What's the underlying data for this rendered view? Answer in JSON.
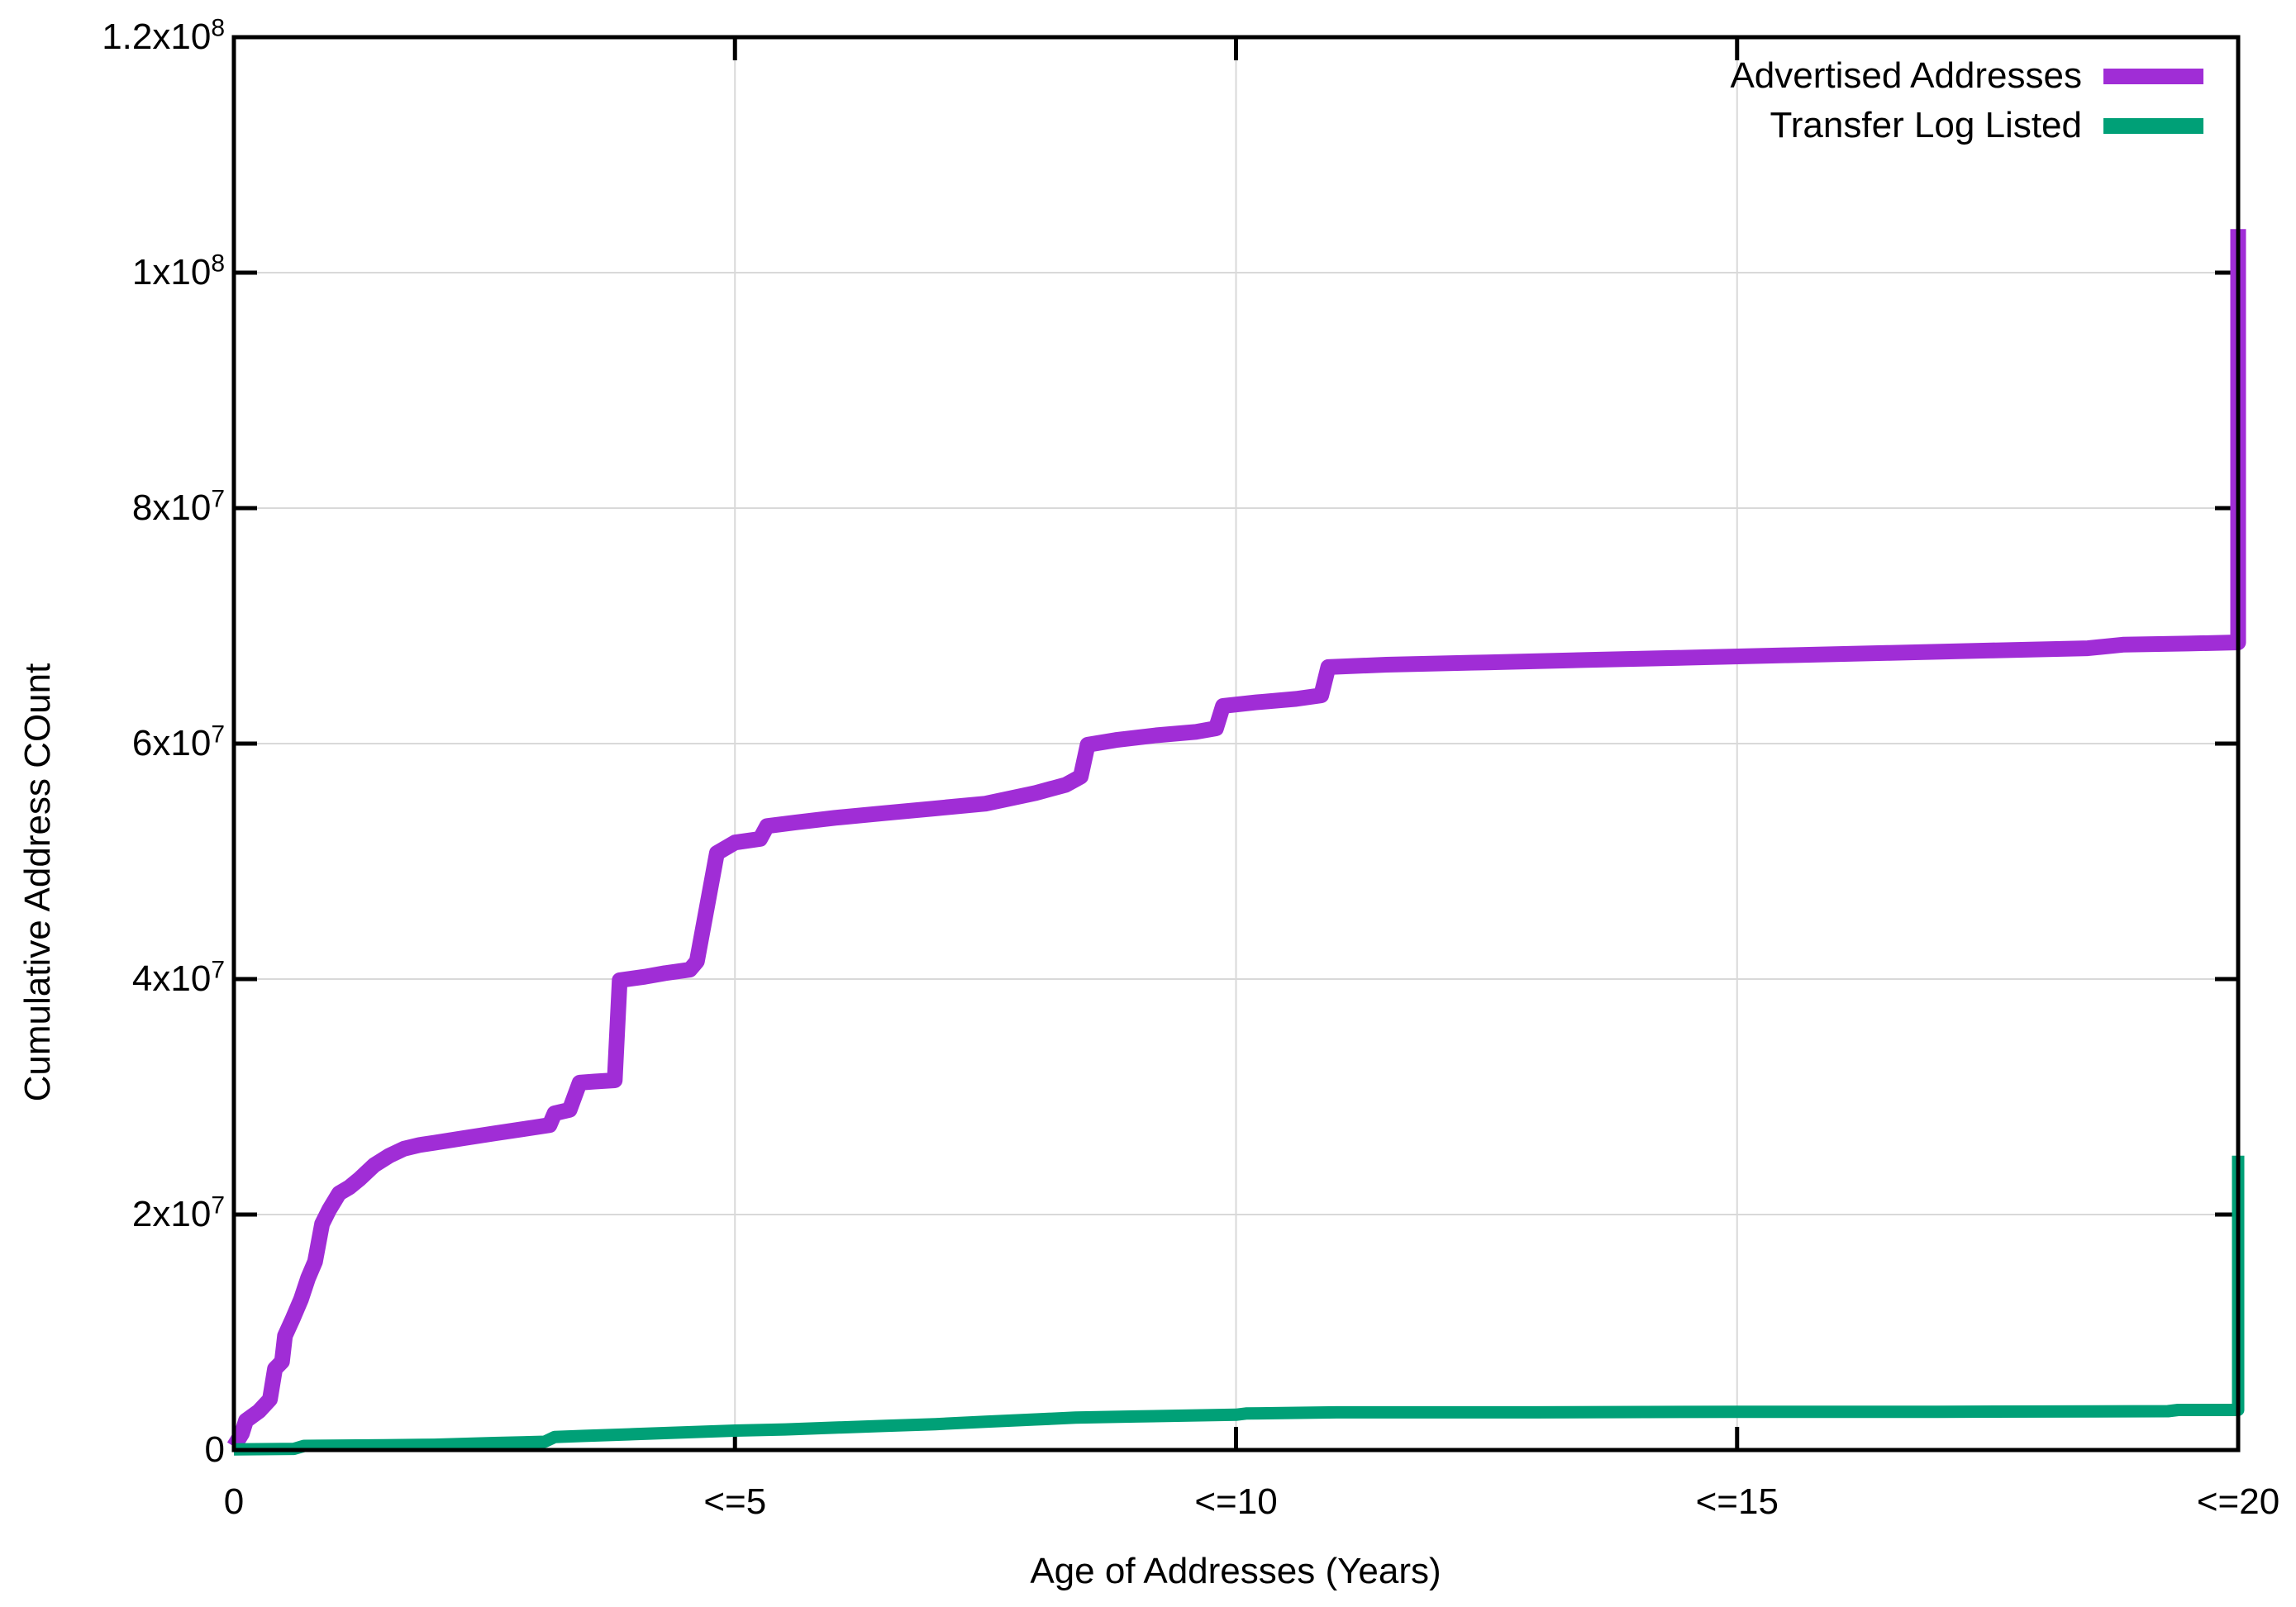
{
  "figure": {
    "background_color": "#ffffff",
    "border_color": "#000000",
    "grid_color": "#d9d9d9"
  },
  "legend": {
    "position": "top-right-inside",
    "entries": [
      {
        "label": "Advertised Addresses",
        "color": "#A02DD6"
      },
      {
        "label": "Transfer Log Listed",
        "color": "#00A077"
      }
    ]
  },
  "axis": {
    "x_label": "Age of Addresses (Years)",
    "y_label": "Cumulative Address COunt",
    "x_ticks": [
      {
        "year": 0,
        "label": "0"
      },
      {
        "year": 5,
        "label": "<=5"
      },
      {
        "year": 10,
        "label": "<=10"
      },
      {
        "year": 15,
        "label": "<=15"
      },
      {
        "year": 20,
        "label": "<=20"
      }
    ],
    "y_ticks": [
      {
        "value": 0,
        "base": "0",
        "exp": ""
      },
      {
        "value": 20000000,
        "base": "2x10",
        "exp": "7"
      },
      {
        "value": 40000000,
        "base": "4x10",
        "exp": "7"
      },
      {
        "value": 60000000,
        "base": "6x10",
        "exp": "7"
      },
      {
        "value": 80000000,
        "base": "8x10",
        "exp": "7"
      },
      {
        "value": 100000000,
        "base": "1x10",
        "exp": "8"
      },
      {
        "value": 120000000,
        "base": "1.2x10",
        "exp": "8"
      }
    ]
  },
  "chart_data": {
    "type": "line",
    "title": "",
    "xlabel": "Age of Addresses (Years)",
    "ylabel": "Cumulative Address COunt",
    "xlim": [
      0,
      20
    ],
    "ylim": [
      0,
      120000000
    ],
    "grid": true,
    "legend_position": "top-right",
    "series": [
      {
        "name": "Advertised Addresses",
        "color": "#A02DD6",
        "line_width": 19,
        "points": [
          [
            0,
            300000
          ],
          [
            0.08,
            1400000
          ],
          [
            0.12,
            2500000
          ],
          [
            0.25,
            3300000
          ],
          [
            0.36,
            4300000
          ],
          [
            0.41,
            6900000
          ],
          [
            0.48,
            7500000
          ],
          [
            0.51,
            9700000
          ],
          [
            0.59,
            11200000
          ],
          [
            0.67,
            12800000
          ],
          [
            0.74,
            14600000
          ],
          [
            0.81,
            16000000
          ],
          [
            0.88,
            19200000
          ],
          [
            0.95,
            20400000
          ],
          [
            1.05,
            21800000
          ],
          [
            1.15,
            22300000
          ],
          [
            1.25,
            23000000
          ],
          [
            1.4,
            24200000
          ],
          [
            1.55,
            25000000
          ],
          [
            1.7,
            25600000
          ],
          [
            1.85,
            25900000
          ],
          [
            2.0,
            26100000
          ],
          [
            2.3,
            26500000
          ],
          [
            2.6,
            26900000
          ],
          [
            3.0,
            27400000
          ],
          [
            3.15,
            27600000
          ],
          [
            3.2,
            28600000
          ],
          [
            3.35,
            28900000
          ],
          [
            3.45,
            31200000
          ],
          [
            3.6,
            31300000
          ],
          [
            3.8,
            31400000
          ],
          [
            3.85,
            39900000
          ],
          [
            4.1,
            40200000
          ],
          [
            4.3,
            40500000
          ],
          [
            4.55,
            40800000
          ],
          [
            4.62,
            41500000
          ],
          [
            4.72,
            46100000
          ],
          [
            4.82,
            50700000
          ],
          [
            5.0,
            51600000
          ],
          [
            5.25,
            51900000
          ],
          [
            5.32,
            53000000
          ],
          [
            5.6,
            53300000
          ],
          [
            6.0,
            53700000
          ],
          [
            6.5,
            54100000
          ],
          [
            7.0,
            54500000
          ],
          [
            7.5,
            54900000
          ],
          [
            8.0,
            55800000
          ],
          [
            8.3,
            56500000
          ],
          [
            8.45,
            57200000
          ],
          [
            8.52,
            59900000
          ],
          [
            8.8,
            60300000
          ],
          [
            9.2,
            60700000
          ],
          [
            9.6,
            61000000
          ],
          [
            9.8,
            61300000
          ],
          [
            9.87,
            63200000
          ],
          [
            10.2,
            63500000
          ],
          [
            10.6,
            63800000
          ],
          [
            10.85,
            64100000
          ],
          [
            10.92,
            66500000
          ],
          [
            11.5,
            66700000
          ],
          [
            12.5,
            66900000
          ],
          [
            13.5,
            67100000
          ],
          [
            14.5,
            67300000
          ],
          [
            15.5,
            67500000
          ],
          [
            16.5,
            67700000
          ],
          [
            17.5,
            67900000
          ],
          [
            18.5,
            68100000
          ],
          [
            18.85,
            68400000
          ],
          [
            19.5,
            68500000
          ],
          [
            20,
            68600000
          ],
          [
            20,
            103700000
          ]
        ]
      },
      {
        "name": "Transfer Log Listed",
        "color": "#00A077",
        "line_width": 15,
        "points": [
          [
            0,
            50000
          ],
          [
            0.6,
            100000
          ],
          [
            0.7,
            350000
          ],
          [
            1.5,
            400000
          ],
          [
            2.0,
            450000
          ],
          [
            2.6,
            600000
          ],
          [
            3.1,
            700000
          ],
          [
            3.2,
            1100000
          ],
          [
            3.5,
            1200000
          ],
          [
            4.0,
            1350000
          ],
          [
            4.5,
            1500000
          ],
          [
            5.0,
            1650000
          ],
          [
            5.5,
            1750000
          ],
          [
            6.0,
            1900000
          ],
          [
            6.5,
            2050000
          ],
          [
            7.0,
            2200000
          ],
          [
            7.5,
            2400000
          ],
          [
            8.0,
            2600000
          ],
          [
            8.4,
            2750000
          ],
          [
            9.0,
            2850000
          ],
          [
            10.0,
            3000000
          ],
          [
            10.1,
            3100000
          ],
          [
            11.0,
            3200000
          ],
          [
            13.0,
            3200000
          ],
          [
            15.0,
            3250000
          ],
          [
            17.0,
            3250000
          ],
          [
            19.3,
            3300000
          ],
          [
            19.4,
            3400000
          ],
          [
            20,
            3400000
          ],
          [
            20,
            25000000
          ]
        ]
      }
    ]
  }
}
